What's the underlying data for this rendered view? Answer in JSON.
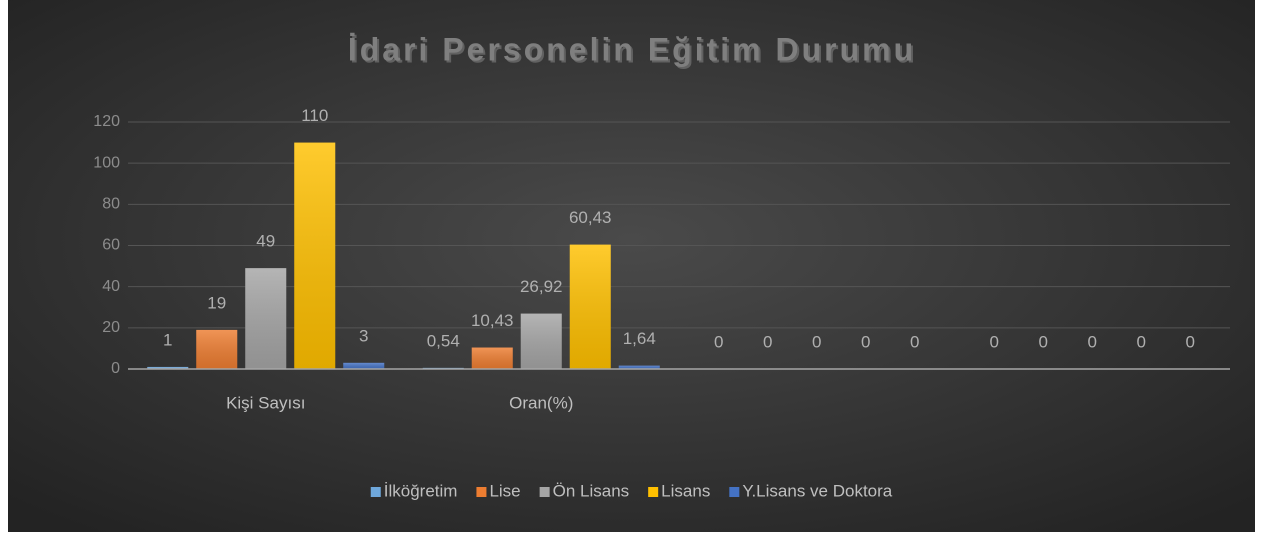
{
  "chart_data": {
    "type": "bar",
    "title": "İdari Personelin Eğitim Durumu",
    "categories": [
      "Kişi Sayısı",
      "Oran(%)",
      null,
      null
    ],
    "series": [
      {
        "name": "İlköğretim",
        "color": "#6fa8dc",
        "values": [
          1,
          0.54,
          0,
          0
        ],
        "value_labels": [
          "1",
          "0,54",
          "0",
          "0"
        ]
      },
      {
        "name": "Lise",
        "color": "#ed7d31",
        "values": [
          19,
          10.43,
          0,
          0
        ],
        "value_labels": [
          "19",
          "10,43",
          "0",
          "0"
        ]
      },
      {
        "name": "Ön Lisans",
        "color": "#a5a5a5",
        "values": [
          49,
          26.92,
          0,
          0
        ],
        "value_labels": [
          "49",
          "26,92",
          "0",
          "0"
        ]
      },
      {
        "name": "Lisans",
        "color": "#ffc000",
        "values": [
          110,
          60.43,
          0,
          0
        ],
        "value_labels": [
          "110",
          "60,43",
          "0",
          "0"
        ]
      },
      {
        "name": "Y.Lisans ve Doktora",
        "color": "#4472c4",
        "values": [
          3,
          1.64,
          0,
          0
        ],
        "value_labels": [
          "3",
          "1,64",
          "0",
          "0"
        ]
      }
    ],
    "ylim": [
      0,
      120
    ],
    "yticks": [
      0,
      20,
      40,
      60,
      80,
      100,
      120
    ],
    "grid": true,
    "legend": "bottom"
  }
}
